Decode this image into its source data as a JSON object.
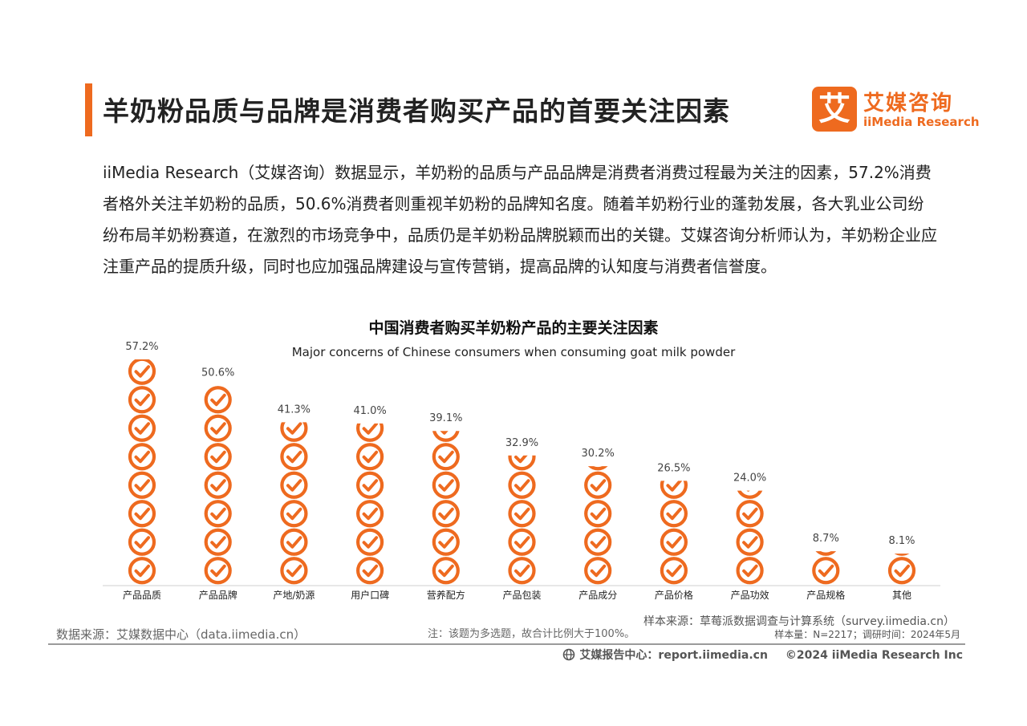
{
  "header": {
    "title": "羊奶粉品质与品牌是消费者购买产品的首要关注因素",
    "logo_mark": "艾",
    "logo_cn": "艾媒咨询",
    "logo_en": "iiMedia Research"
  },
  "paragraph": "iiMedia Research（艾媒咨询）数据显示，羊奶粉的品质与产品品牌是消费者消费过程最为关注的因素，57.2%消费者格外关注羊奶粉的品质，50.6%消费者则重视羊奶粉的品牌知名度。随着羊奶粉行业的蓬勃发展，各大乳业公司纷纷布局羊奶粉赛道，在激烈的市场竞争中，品质仍是羊奶粉品牌脱颖而出的关键。艾媒咨询分析师认为，羊奶粉企业应注重产品的提质升级，同时也应加强品牌建设与宣传营销，提高品牌的认知度与消费者信誉度。",
  "chart_data": {
    "type": "bar",
    "title": "中国消费者购买羊奶粉产品的主要关注因素",
    "subtitle": "Major concerns of Chinese consumers when consuming goat milk powder",
    "categories": [
      "产品品质",
      "产品品牌",
      "产地/奶源",
      "用户口碑",
      "营养配方",
      "产品包装",
      "产品成分",
      "产品价格",
      "产品功效",
      "产品规格",
      "其他"
    ],
    "values": [
      57.2,
      50.6,
      41.3,
      41.0,
      39.1,
      32.9,
      30.2,
      26.5,
      24.0,
      8.7,
      8.1
    ],
    "value_labels": [
      "57.2%",
      "50.6%",
      "41.3%",
      "41.0%",
      "39.1%",
      "32.9%",
      "30.2%",
      "26.5%",
      "24.0%",
      "8.7%",
      "8.1%"
    ],
    "unit": "%",
    "icon": "check-circle-icon",
    "color": "#ee6a1f"
  },
  "footer": {
    "source": "数据来源：艾媒数据中心（data.iimedia.cn）",
    "note": "注：该题为多选题，故合计比例大于100%。",
    "sample_source": "样本来源：草莓派数据调查与计算系统（survey.iimedia.cn）",
    "sample_size": "样本量：N=2217；调研时间：2024年5月",
    "report_center": "艾媒报告中心：report.iimedia.cn",
    "copyright": "©2024  iiMedia Research  Inc"
  }
}
